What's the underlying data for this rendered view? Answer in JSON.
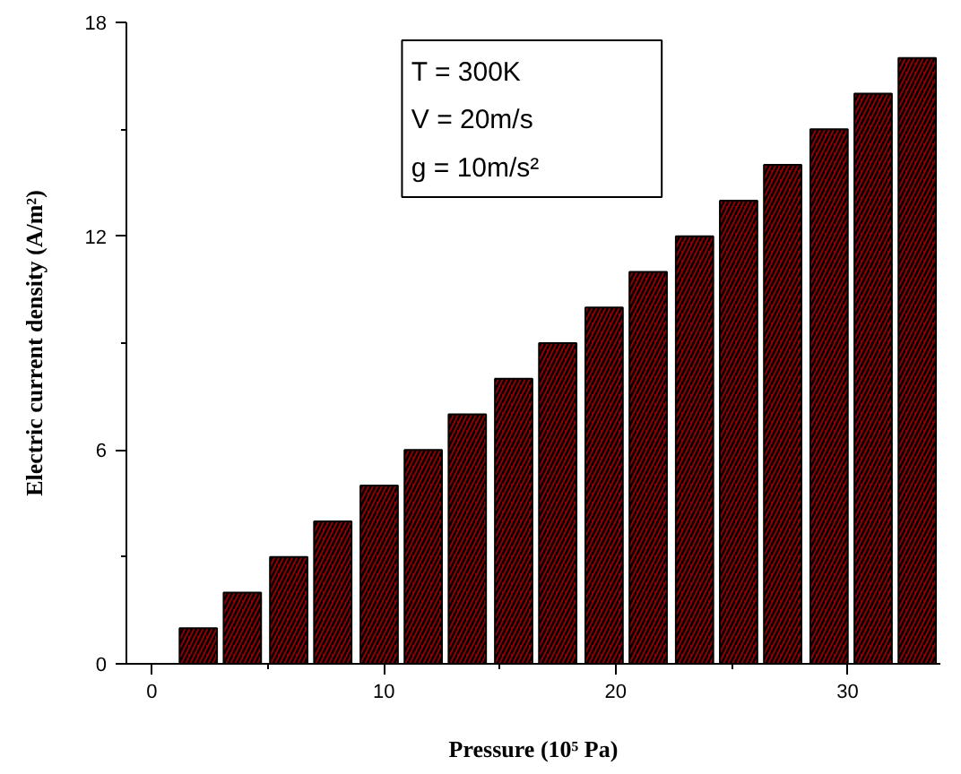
{
  "chart_data": {
    "type": "bar",
    "xlabel": "Pressure (10⁵ Pa)",
    "ylabel": "Electric current density (A/m²)",
    "x": [
      2.0,
      3.9,
      5.9,
      7.8,
      9.8,
      11.7,
      13.6,
      15.6,
      17.5,
      19.5,
      21.4,
      23.4,
      25.3,
      27.2,
      29.2,
      31.1,
      33.0
    ],
    "values": [
      1,
      2,
      3,
      4,
      5,
      6,
      7,
      8,
      9,
      10,
      11,
      12,
      13,
      14,
      15,
      16,
      17
    ],
    "color": "#8b0000",
    "xlim": [
      -1.1,
      34.0
    ],
    "xticks": [
      0,
      10,
      20,
      30
    ],
    "ylim": [
      0,
      18
    ],
    "yticks": [
      0,
      6,
      12,
      18
    ],
    "annotations": [
      "T = 300K",
      "V = 20m/s",
      "g = 10m/s²"
    ],
    "grid": false
  }
}
